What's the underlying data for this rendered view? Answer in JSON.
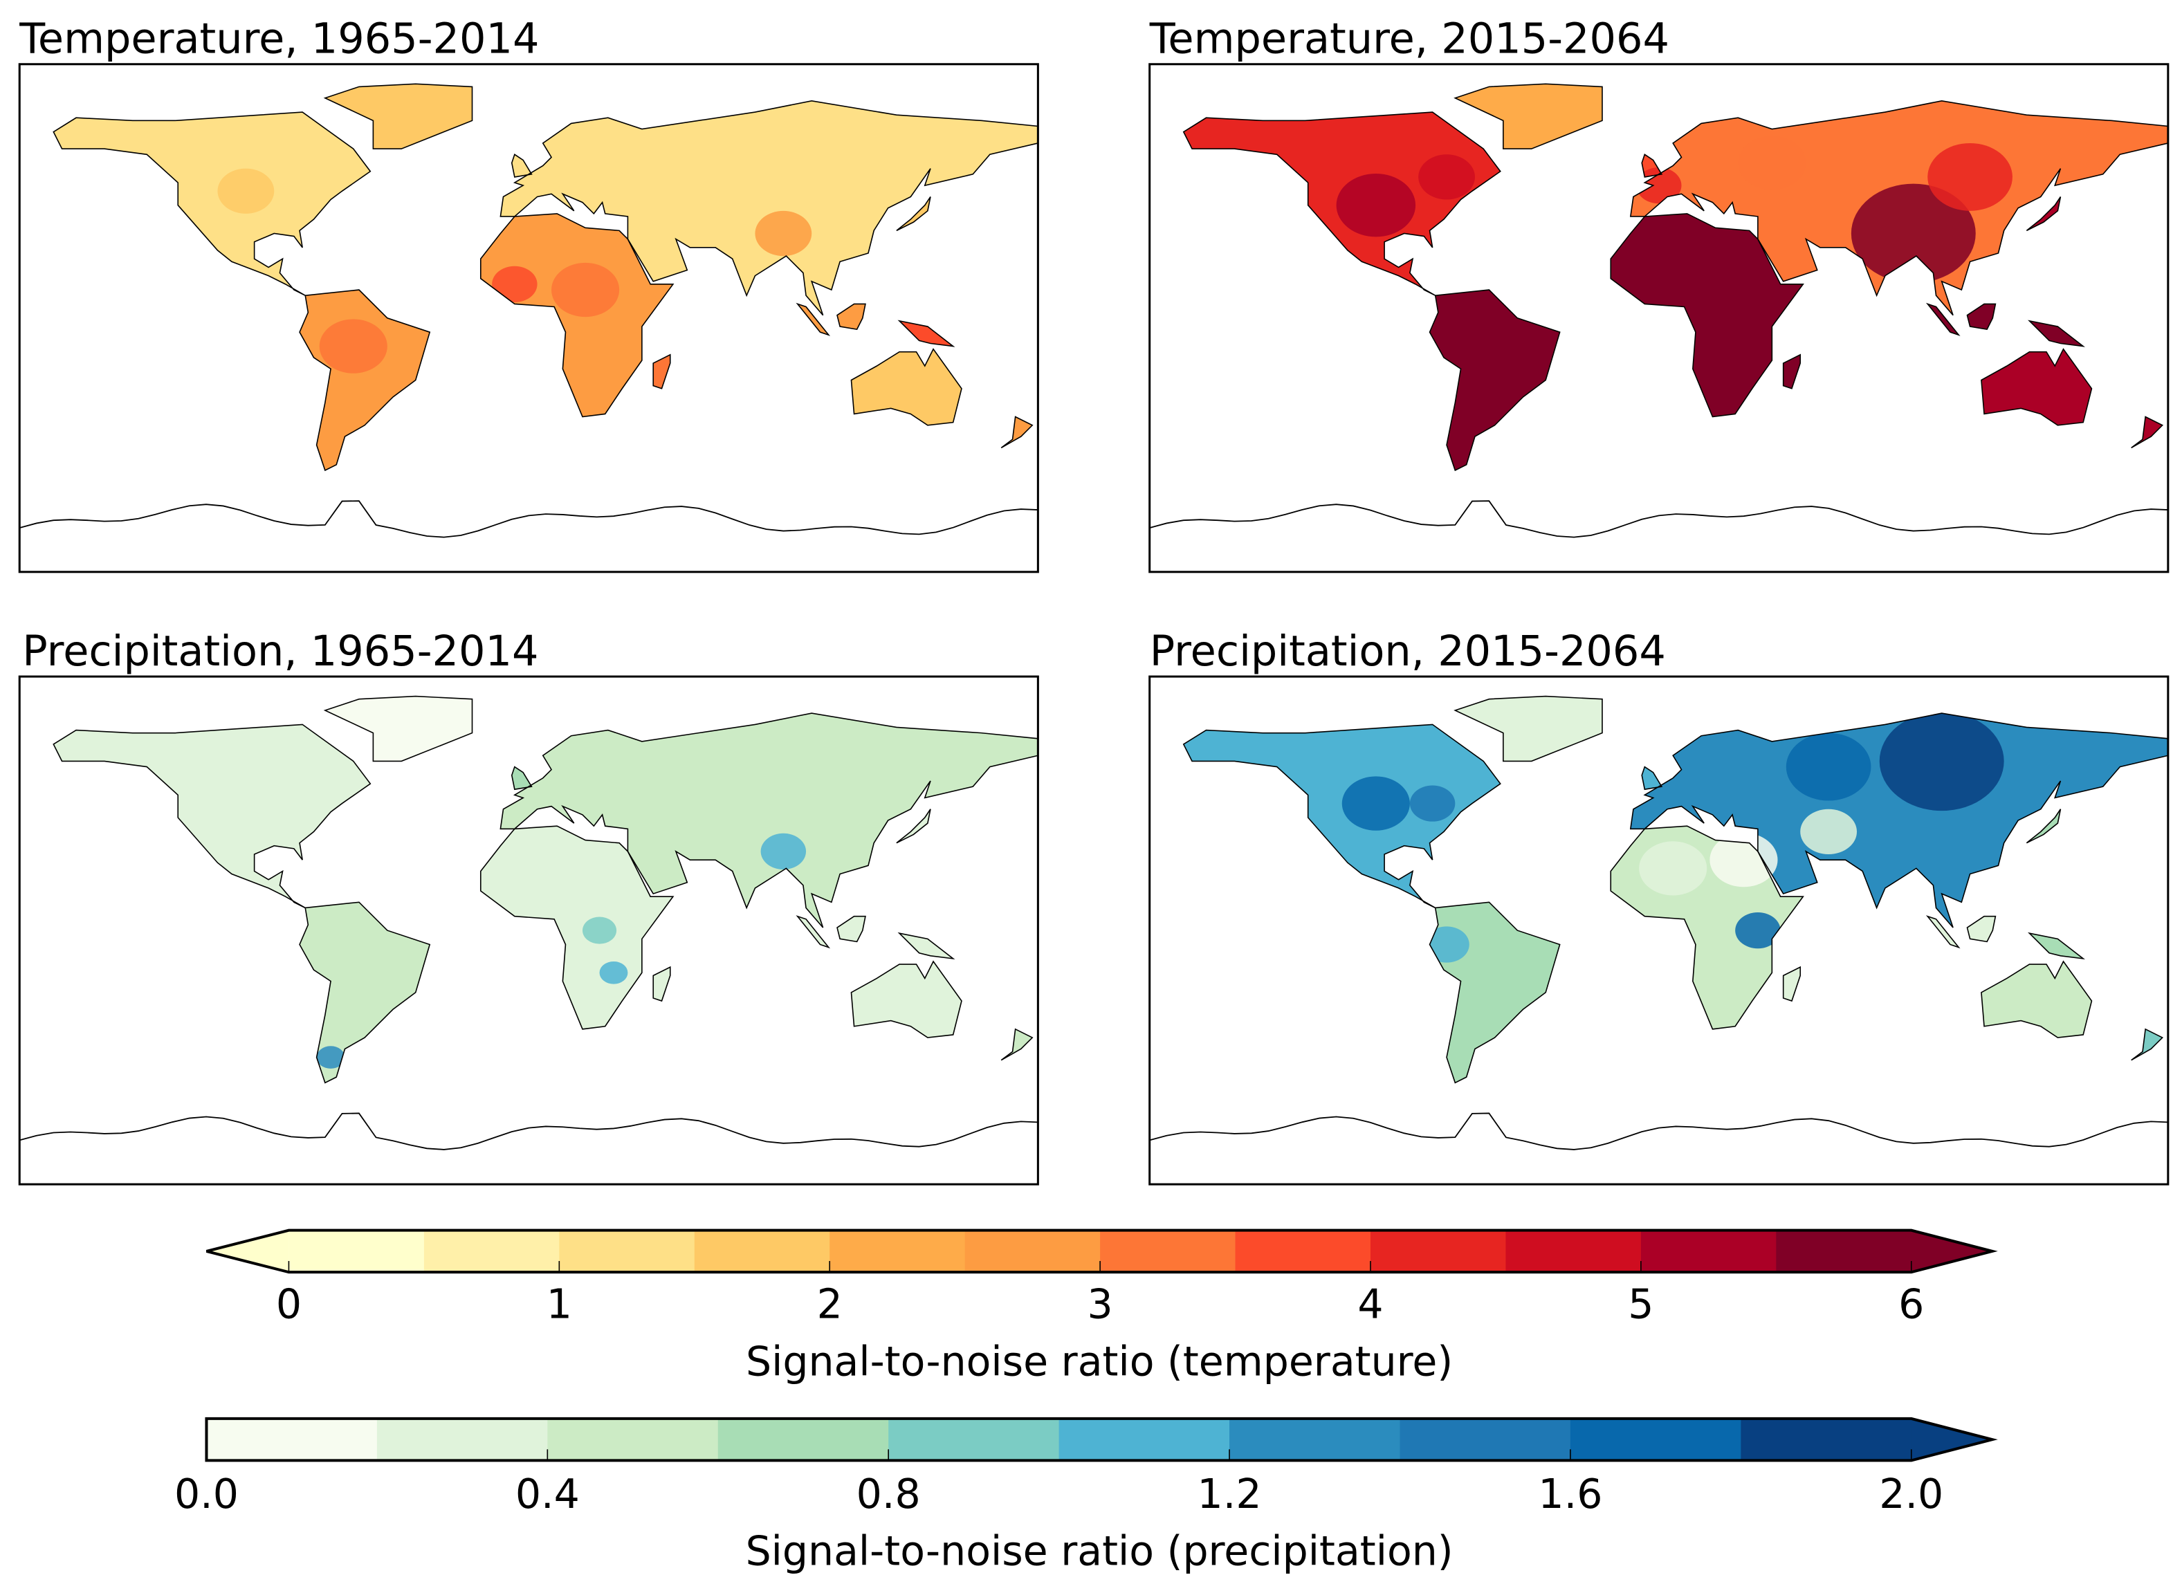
{
  "panels": [
    {
      "title": "Temperature, 1965-2014",
      "variable": "temperature"
    },
    {
      "title": "Temperature, 2015-2064",
      "variable": "temperature"
    },
    {
      "title": "Precipitation, 1965-2014",
      "variable": "precipitation"
    },
    {
      "title": "Precipitation, 2015-2064",
      "variable": "precipitation"
    }
  ],
  "chart_data": [
    {
      "type": "heatmap",
      "title": "Signal-to-noise ratio (temperature)",
      "colorbar": {
        "label": "Signal-to-noise ratio (temperature)",
        "range": [
          0,
          6
        ],
        "extend": "both",
        "ticks": [
          "0",
          "1",
          "2",
          "3",
          "4",
          "5",
          "6"
        ],
        "colors": [
          "#ffffcc",
          "#fff0a9",
          "#fee087",
          "#fec965",
          "#feab49",
          "#fd9c42",
          "#fd7636",
          "#fc4b2a",
          "#e72521",
          "#cf0d20",
          "#ab0026",
          "#800026"
        ]
      }
    },
    {
      "type": "heatmap",
      "title": "Signal-to-noise ratio (precipitation)",
      "colorbar": {
        "label": "Signal-to-noise ratio (precipitation)",
        "range": [
          0.0,
          2.0
        ],
        "extend": "max",
        "ticks": [
          "0.0",
          "0.4",
          "0.8",
          "1.2",
          "1.6",
          "2.0"
        ],
        "colors": [
          "#f7fcf0",
          "#e0f3db",
          "#ccebc5",
          "#a8ddb5",
          "#7bccc4",
          "#4eb3d3",
          "#2b8cbe",
          "#1f78b4",
          "#0868ac",
          "#084081"
        ]
      }
    }
  ]
}
